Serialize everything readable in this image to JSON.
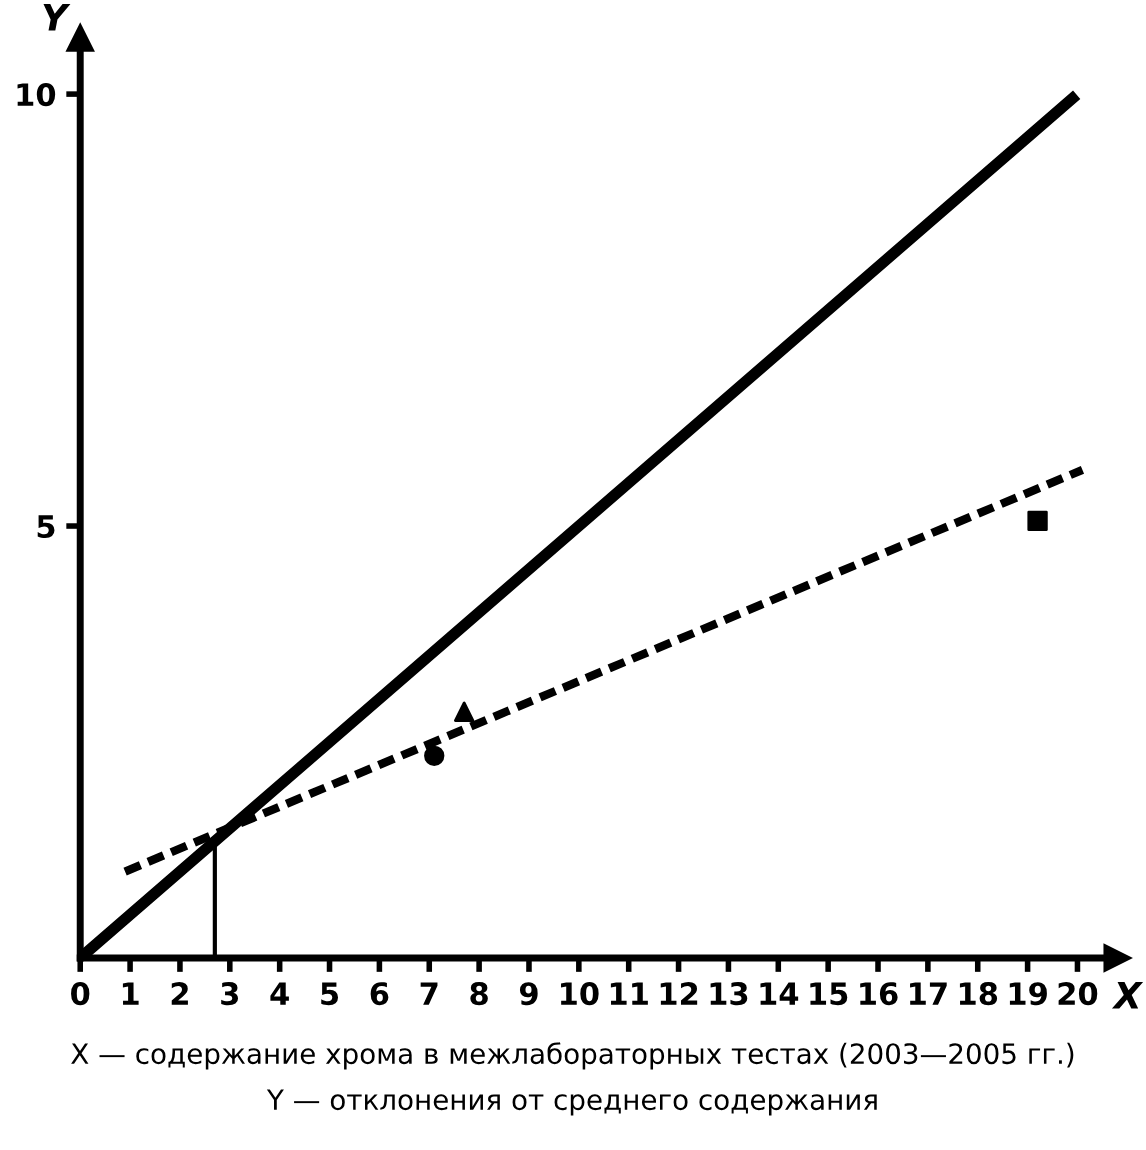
{
  "chart_data": {
    "type": "line",
    "xlabel": "X",
    "ylabel": "Y",
    "xlim": [
      0,
      20.8
    ],
    "ylim": [
      0,
      10.65
    ],
    "xticks": [
      0,
      1,
      2,
      3,
      4,
      5,
      6,
      7,
      8,
      9,
      10,
      11,
      12,
      13,
      14,
      15,
      16,
      17,
      18,
      19,
      20
    ],
    "yticks": [
      5,
      10
    ],
    "grid": false,
    "legend": false,
    "series": [
      {
        "color": "#000000",
        "line_style": "solid",
        "x": [
          0,
          19.9
        ],
        "values": [
          0,
          9.95
        ]
      },
      {
        "color": "#000000",
        "line_style": "dashed",
        "x": [
          0.9,
          20.1
        ],
        "values": [
          1.0,
          5.65
        ]
      },
      {
        "color": "#000000",
        "line_style": "solid",
        "x": [
          2.7,
          2.7
        ],
        "values": [
          0,
          1.37
        ]
      },
      {
        "type": "scatter",
        "color": "#000000",
        "marker": "circle",
        "x": [
          7.1
        ],
        "values": [
          2.34
        ]
      },
      {
        "type": "scatter",
        "color": "#000000",
        "marker": "triangle",
        "x": [
          7.7
        ],
        "values": [
          2.85
        ]
      },
      {
        "type": "scatter",
        "color": "#000000",
        "marker": "square",
        "x": [
          19.2
        ],
        "values": [
          5.06
        ]
      }
    ],
    "annotations": [
      "X — содержание хрома в межлабораторных тестах (2003—2005 гг.)",
      "Y — отклонения от среднего содержания"
    ]
  }
}
